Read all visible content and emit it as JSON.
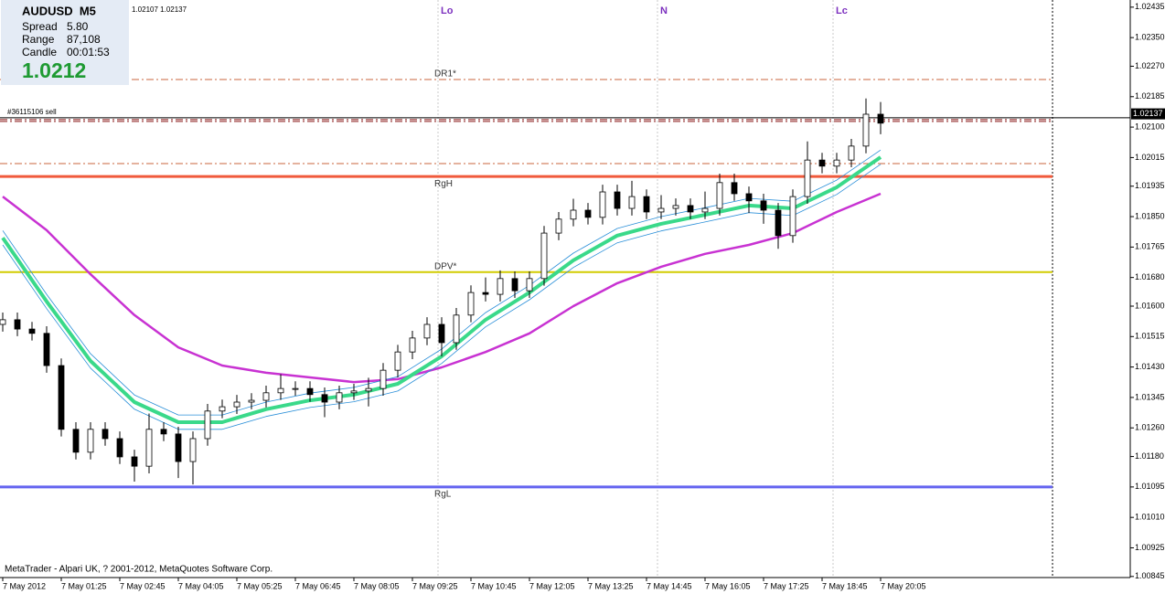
{
  "chart_data": {
    "type": "candlestick",
    "title": "AUDUSD  M5",
    "quote": "1.02107 1.02137",
    "info": [
      {
        "label": "Spread",
        "value": "5.80"
      },
      {
        "label": "Range",
        "value": "87,108"
      },
      {
        "label": "Candle",
        "value": "00:01:53"
      }
    ],
    "big_price": "1.0212",
    "footer": "MetaTrader - Alpari UK, ? 2001-2012, MetaQuotes Software Corp.",
    "xlim": [
      -0.75,
      308.25
    ],
    "ylim": [
      1.00842,
      1.02455
    ],
    "xticks": [
      {
        "value": 0,
        "label": "7 May 2012"
      },
      {
        "value": 16,
        "label": "7 May 01:25"
      },
      {
        "value": 32,
        "label": "7 May 02:45"
      },
      {
        "value": 48,
        "label": "7 May 04:05"
      },
      {
        "value": 64,
        "label": "7 May 05:25"
      },
      {
        "value": 80,
        "label": "7 May 06:45"
      },
      {
        "value": 96,
        "label": "7 May 08:05"
      },
      {
        "value": 112,
        "label": "7 May 09:25"
      },
      {
        "value": 128,
        "label": "7 May 10:45"
      },
      {
        "value": 144,
        "label": "7 May 12:05"
      },
      {
        "value": 160,
        "label": "7 May 13:25"
      },
      {
        "value": 176,
        "label": "7 May 14:45"
      },
      {
        "value": 192,
        "label": "7 May 16:05"
      },
      {
        "value": 208,
        "label": "7 May 17:25"
      },
      {
        "value": 224,
        "label": "7 May 18:45"
      },
      {
        "value": 240,
        "label": "7 May 20:05"
      }
    ],
    "yticks": [
      1.02435,
      {
        "value": 1.0235,
        "label": "1.02350"
      },
      {
        "value": 1.0227,
        "label": "1.02270"
      },
      1.02185,
      {
        "value": 1.021,
        "label": "1.02100"
      },
      1.02015,
      1.01935,
      {
        "value": 1.0185,
        "label": "1.01850"
      },
      1.01765,
      {
        "value": 1.0168,
        "label": "1.01680"
      },
      {
        "value": 1.016,
        "label": "1.01600"
      },
      1.01515,
      {
        "value": 1.0143,
        "label": "1.01430"
      },
      1.01345,
      {
        "value": 1.0126,
        "label": "1.01260"
      },
      {
        "value": 1.0118,
        "label": "1.01180"
      },
      1.01095,
      {
        "value": 1.0101,
        "label": "1.01010"
      },
      1.00925,
      1.00845
    ],
    "up_color": "#ffffff",
    "down_color": "#000000",
    "x": [
      0,
      4,
      8,
      12,
      16,
      20,
      24,
      28,
      32,
      36,
      40,
      44,
      48,
      52,
      56,
      60,
      64,
      68,
      72,
      76,
      80,
      84,
      88,
      92,
      96,
      100,
      104,
      108,
      112,
      116,
      120,
      124,
      128,
      132,
      136,
      140,
      144,
      148,
      152,
      156,
      160,
      164,
      168,
      172,
      176,
      180,
      184,
      188,
      192,
      196,
      200,
      204,
      208,
      212,
      216,
      220,
      224,
      228,
      232,
      236,
      240
    ],
    "open": [
      1.01549,
      1.01562,
      1.01536,
      1.01524,
      1.01434,
      1.01256,
      1.01192,
      1.01256,
      1.0123,
      1.01179,
      1.01153,
      1.01256,
      1.01243,
      1.01166,
      1.0123,
      1.01307,
      1.01319,
      1.01332,
      1.01337,
      1.01358,
      1.0137,
      1.0137,
      1.01353,
      1.01332,
      1.01358,
      1.01363,
      1.0137,
      1.01421,
      1.01472,
      1.01511,
      1.01549,
      1.01498,
      1.01575,
      1.01638,
      1.01633,
      1.01677,
      1.01643,
      1.01677,
      1.01804,
      1.01843,
      1.01868,
      1.01848,
      1.01919,
      1.01873,
      1.01906,
      1.01863,
      1.01873,
      1.01881,
      1.01863,
      1.01873,
      1.01945,
      1.01914,
      1.01894,
      1.01868,
      1.01797,
      1.01906,
      1.02008,
      1.01991,
      1.02008,
      1.02047,
      1.02136
    ],
    "high": [
      1.01582,
      1.01582,
      1.01556,
      1.01544,
      1.01454,
      1.01276,
      1.01276,
      1.01276,
      1.0125,
      1.01199,
      1.013,
      1.01276,
      1.01263,
      1.0125,
      1.01327,
      1.01339,
      1.01352,
      1.01357,
      1.01378,
      1.0141,
      1.0139,
      1.0139,
      1.01373,
      1.01378,
      1.01383,
      1.014,
      1.01441,
      1.01492,
      1.01531,
      1.01569,
      1.01569,
      1.01595,
      1.01658,
      1.0168,
      1.017,
      1.01697,
      1.01697,
      1.01824,
      1.01863,
      1.019,
      1.01888,
      1.01939,
      1.01939,
      1.0195,
      1.01926,
      1.0191,
      1.01901,
      1.01901,
      1.0192,
      1.0197,
      1.0197,
      1.01934,
      1.01914,
      1.01888,
      1.01926,
      1.0206,
      1.02028,
      1.02028,
      1.02067,
      1.0218,
      1.0217
    ],
    "low": [
      1.01529,
      1.01516,
      1.01504,
      1.01414,
      1.01236,
      1.01172,
      1.01172,
      1.0121,
      1.01159,
      1.0111,
      1.01133,
      1.01223,
      1.0112,
      1.01102,
      1.0121,
      1.01287,
      1.01299,
      1.01312,
      1.01317,
      1.01338,
      1.0135,
      1.01333,
      1.0129,
      1.01312,
      1.01338,
      1.0132,
      1.0135,
      1.01401,
      1.01452,
      1.01491,
      1.0146,
      1.01478,
      1.01555,
      1.01613,
      1.01613,
      1.01623,
      1.01623,
      1.01657,
      1.01784,
      1.01823,
      1.01828,
      1.01828,
      1.01853,
      1.01853,
      1.01843,
      1.01843,
      1.01853,
      1.01843,
      1.01843,
      1.01853,
      1.01894,
      1.0186,
      1.0183,
      1.0176,
      1.01777,
      1.01886,
      1.01971,
      1.01971,
      1.01988,
      1.02027,
      1.0208
    ],
    "close": [
      1.01562,
      1.01536,
      1.01524,
      1.01434,
      1.01256,
      1.01192,
      1.01256,
      1.0123,
      1.01179,
      1.01153,
      1.01256,
      1.01243,
      1.01166,
      1.0123,
      1.01307,
      1.01319,
      1.01332,
      1.01337,
      1.01358,
      1.0137,
      1.0137,
      1.01353,
      1.01332,
      1.01358,
      1.01363,
      1.0137,
      1.01421,
      1.01472,
      1.01511,
      1.01549,
      1.01498,
      1.01575,
      1.01638,
      1.01633,
      1.01677,
      1.01643,
      1.01677,
      1.01804,
      1.01843,
      1.01868,
      1.01848,
      1.01919,
      1.01873,
      1.01906,
      1.01863,
      1.01873,
      1.01881,
      1.01863,
      1.01873,
      1.01945,
      1.01914,
      1.01894,
      1.01868,
      1.01797,
      1.01906,
      1.02008,
      1.01991,
      1.02008,
      1.02047,
      1.02136,
      1.02111
    ],
    "indicators": [
      {
        "color": "#c832d2",
        "width": 2.5,
        "x": [
          0,
          12,
          24,
          36,
          48,
          60,
          72,
          84,
          96,
          108,
          120,
          132,
          144,
          156,
          168,
          180,
          192,
          204,
          216,
          228,
          240
        ],
        "values": [
          1.01906,
          1.01812,
          1.01689,
          1.01575,
          1.01485,
          1.01434,
          1.01414,
          1.01401,
          1.01388,
          1.01396,
          1.01429,
          1.01472,
          1.01524,
          1.016,
          1.01664,
          1.0171,
          1.01746,
          1.01771,
          1.01804,
          1.01863,
          1.01914
        ]
      },
      {
        "color": "#2a8fd8",
        "width": 0.8,
        "x": [
          0,
          12,
          24,
          36,
          48,
          60,
          72,
          84,
          96,
          108,
          120,
          132,
          144,
          156,
          168,
          180,
          192,
          204,
          216,
          228,
          240
        ],
        "values": [
          1.01811,
          1.01633,
          1.01467,
          1.01352,
          1.01296,
          1.01296,
          1.01332,
          1.01357,
          1.01373,
          1.01403,
          1.0148,
          1.01582,
          1.01658,
          1.01748,
          1.01817,
          1.0185,
          1.01875,
          1.01901,
          1.01893,
          1.01952,
          1.02036
        ]
      },
      {
        "color": "#2a8fd8",
        "width": 0.8,
        "x": [
          0,
          12,
          24,
          36,
          48,
          60,
          72,
          84,
          96,
          108,
          120,
          132,
          144,
          156,
          168,
          180,
          192,
          204,
          216,
          228,
          240
        ],
        "values": [
          1.01771,
          1.01593,
          1.01427,
          1.01312,
          1.01256,
          1.01256,
          1.01292,
          1.01317,
          1.01333,
          1.01363,
          1.0144,
          1.01542,
          1.01618,
          1.01708,
          1.01777,
          1.0181,
          1.01835,
          1.01861,
          1.01853,
          1.01912,
          1.01996
        ]
      },
      {
        "color": "#3ad98a",
        "width": 4,
        "x": [
          0,
          12,
          24,
          36,
          48,
          60,
          72,
          84,
          96,
          108,
          120,
          132,
          144,
          156,
          168,
          180,
          192,
          204,
          216,
          228,
          240
        ],
        "values": [
          1.01791,
          1.01613,
          1.01447,
          1.01332,
          1.01276,
          1.01276,
          1.01312,
          1.01337,
          1.01353,
          1.01383,
          1.0146,
          1.01562,
          1.01638,
          1.01728,
          1.01797,
          1.0183,
          1.01855,
          1.01881,
          1.01873,
          1.01932,
          1.02016
        ]
      }
    ],
    "levels": [
      {
        "label": "DR1*",
        "value": 1.02233,
        "color": "#c8643c",
        "style": "dashdot",
        "width": 1,
        "label_position": "above"
      },
      {
        "value": 1.01998,
        "color": "#c8643c",
        "style": "dashdot",
        "width": 1
      },
      {
        "label": "RgH",
        "value": 1.01962,
        "color": "#f05a3c",
        "style": "solid",
        "width": 3,
        "label_position": "below"
      },
      {
        "label": "DPV*",
        "value": 1.01695,
        "color": "#d2cc00",
        "style": "solid",
        "width": 2,
        "label_position": "above"
      },
      {
        "label": "RgL",
        "value": 1.01095,
        "color": "#6464f0",
        "style": "solid",
        "width": 3,
        "label_position": "below"
      },
      {
        "value": 1.02121,
        "color": "#8b1a1a",
        "style": "dashdot",
        "width": 1
      },
      {
        "value": 1.02116,
        "color": "#8b1a1a",
        "style": "dashdot",
        "width": 1
      }
    ],
    "order": {
      "label": "#36115106 sell",
      "value": 1.02126,
      "color": "#000000"
    },
    "price_tag": 1.02137,
    "verticals": [
      {
        "label": "Lo",
        "x": 119,
        "color": "#c8c8c8"
      },
      {
        "label": "N",
        "x": 179,
        "color": "#c8c8c8"
      },
      {
        "label": "Lc",
        "x": 227,
        "color": "#c8c8c8"
      },
      {
        "x": 287,
        "color": "#000000"
      }
    ]
  }
}
